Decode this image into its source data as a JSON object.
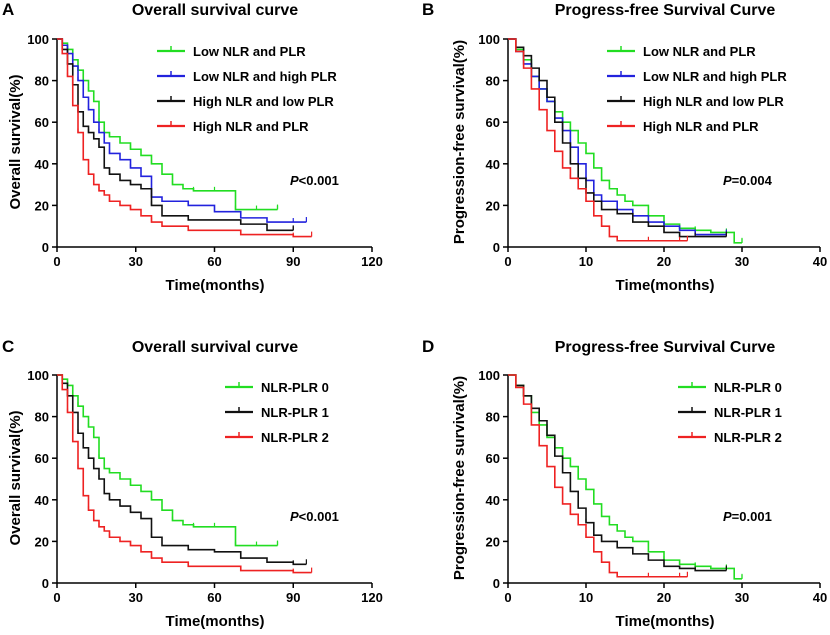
{
  "chart_data": [
    {
      "type": "line",
      "panel_label": "A",
      "title": "Overall survival curve",
      "xlabel": "Time(months)",
      "ylabel": "Overall survival(%)",
      "xlim": [
        0,
        120
      ],
      "ylim": [
        0,
        100
      ],
      "xticks": [
        "0",
        "30",
        "60",
        "90",
        "120"
      ],
      "yticks": [
        "0",
        "20",
        "40",
        "60",
        "80",
        "100"
      ],
      "pvalue": {
        "italic": "P",
        "rest": "<0.001"
      },
      "series": [
        {
          "name": "Low NLR and PLR",
          "color": "#22dd22",
          "x": [
            0,
            2,
            4,
            6,
            8,
            10,
            12,
            14,
            16,
            18,
            20,
            24,
            28,
            32,
            36,
            40,
            44,
            48,
            52,
            56,
            60,
            64,
            68,
            72,
            76,
            80,
            84
          ],
          "y": [
            100,
            98,
            95,
            90,
            85,
            80,
            75,
            70,
            60,
            55,
            53,
            50,
            47,
            44,
            40,
            35,
            30,
            28,
            27,
            27,
            27,
            27,
            18,
            18,
            18,
            18,
            18
          ]
        },
        {
          "name": "Low NLR and high PLR",
          "color": "#2222dd",
          "x": [
            0,
            2,
            4,
            6,
            8,
            10,
            12,
            14,
            16,
            18,
            20,
            24,
            28,
            32,
            36,
            40,
            50,
            60,
            70,
            80,
            90,
            95
          ],
          "y": [
            100,
            97,
            93,
            87,
            80,
            72,
            66,
            60,
            55,
            50,
            45,
            42,
            38,
            34,
            24,
            22,
            20,
            17,
            14,
            12,
            12,
            12
          ]
        },
        {
          "name": "High NLR and low PLR",
          "color": "#111111",
          "x": [
            0,
            2,
            4,
            6,
            8,
            10,
            12,
            14,
            16,
            18,
            20,
            24,
            28,
            32,
            36,
            40,
            50,
            60,
            70,
            80,
            90
          ],
          "y": [
            100,
            95,
            88,
            78,
            65,
            58,
            55,
            52,
            48,
            38,
            35,
            32,
            30,
            28,
            20,
            15,
            13,
            13,
            11,
            8,
            8
          ]
        },
        {
          "name": "High NLR and PLR",
          "color": "#ee2222",
          "x": [
            0,
            2,
            4,
            6,
            8,
            10,
            12,
            14,
            16,
            18,
            20,
            24,
            28,
            32,
            36,
            40,
            50,
            60,
            70,
            80,
            90,
            97
          ],
          "y": [
            100,
            93,
            82,
            68,
            55,
            42,
            35,
            30,
            27,
            25,
            22,
            20,
            18,
            15,
            12,
            10,
            8,
            8,
            6,
            6,
            5,
            5
          ]
        }
      ]
    },
    {
      "type": "line",
      "panel_label": "B",
      "title": "Progress-free Survival Curve",
      "xlabel": "Time(months)",
      "ylabel": "Progression-free survival(%)",
      "xlim": [
        0,
        40
      ],
      "ylim": [
        0,
        100
      ],
      "xticks": [
        "0",
        "10",
        "20",
        "30",
        "40"
      ],
      "yticks": [
        "0",
        "20",
        "40",
        "60",
        "80",
        "100"
      ],
      "pvalue": {
        "italic": "P",
        "rest": "=0.004"
      },
      "series": [
        {
          "name": "Low NLR and PLR",
          "color": "#22dd22",
          "x": [
            0,
            1,
            2,
            3,
            4,
            5,
            6,
            7,
            8,
            9,
            10,
            11,
            12,
            13,
            14,
            15,
            16,
            18,
            20,
            22,
            24,
            26,
            28,
            29,
            30
          ],
          "y": [
            100,
            95,
            90,
            82,
            76,
            70,
            65,
            60,
            56,
            50,
            45,
            38,
            32,
            28,
            25,
            22,
            20,
            15,
            11,
            9,
            8,
            7,
            7,
            2,
            2
          ]
        },
        {
          "name": "Low NLR and high PLR",
          "color": "#2222dd",
          "x": [
            0,
            1,
            2,
            3,
            4,
            5,
            6,
            7,
            8,
            9,
            10,
            11,
            12,
            14,
            16,
            18,
            20,
            22,
            24,
            26,
            28
          ],
          "y": [
            100,
            94,
            88,
            82,
            76,
            70,
            62,
            56,
            48,
            40,
            32,
            25,
            22,
            18,
            15,
            12,
            10,
            8,
            6,
            6,
            6
          ]
        },
        {
          "name": "High NLR and low PLR",
          "color": "#111111",
          "x": [
            0,
            1,
            2,
            3,
            4,
            5,
            6,
            7,
            8,
            9,
            10,
            11,
            12,
            14,
            16,
            18,
            20,
            22,
            24,
            26,
            28
          ],
          "y": [
            100,
            96,
            92,
            86,
            80,
            72,
            60,
            50,
            40,
            33,
            26,
            22,
            18,
            16,
            12,
            10,
            7,
            5,
            5,
            5,
            5
          ]
        },
        {
          "name": "High NLR and PLR",
          "color": "#ee2222",
          "x": [
            0,
            1,
            2,
            3,
            4,
            5,
            6,
            7,
            8,
            9,
            10,
            11,
            12,
            13,
            14,
            16,
            18,
            20,
            22,
            23
          ],
          "y": [
            100,
            94,
            86,
            76,
            66,
            56,
            46,
            38,
            33,
            28,
            22,
            15,
            10,
            5,
            3,
            3,
            3,
            3,
            3,
            3
          ]
        }
      ]
    },
    {
      "type": "line",
      "panel_label": "C",
      "title": "Overall survival curve",
      "xlabel": "Time(months)",
      "ylabel": "Overall survival(%)",
      "xlim": [
        0,
        120
      ],
      "ylim": [
        0,
        100
      ],
      "xticks": [
        "0",
        "30",
        "60",
        "90",
        "120"
      ],
      "yticks": [
        "0",
        "20",
        "40",
        "60",
        "80",
        "100"
      ],
      "pvalue": {
        "italic": "P",
        "rest": "<0.001"
      },
      "series": [
        {
          "name": "NLR-PLR 0",
          "color": "#22dd22",
          "x": [
            0,
            2,
            4,
            6,
            8,
            10,
            12,
            14,
            16,
            18,
            20,
            24,
            28,
            32,
            36,
            40,
            44,
            48,
            52,
            56,
            60,
            64,
            68,
            72,
            76,
            80,
            84
          ],
          "y": [
            100,
            98,
            95,
            90,
            85,
            80,
            75,
            70,
            60,
            55,
            53,
            50,
            47,
            44,
            40,
            35,
            30,
            28,
            27,
            27,
            27,
            27,
            18,
            18,
            18,
            18,
            18
          ]
        },
        {
          "name": "NLR-PLR 1",
          "color": "#111111",
          "x": [
            0,
            2,
            4,
            6,
            8,
            10,
            12,
            14,
            16,
            18,
            20,
            24,
            28,
            32,
            36,
            40,
            50,
            60,
            70,
            80,
            90,
            95
          ],
          "y": [
            100,
            96,
            90,
            82,
            72,
            65,
            60,
            55,
            50,
            43,
            40,
            37,
            34,
            31,
            22,
            18,
            16,
            15,
            12,
            10,
            9,
            9
          ]
        },
        {
          "name": "NLR-PLR 2",
          "color": "#ee2222",
          "x": [
            0,
            2,
            4,
            6,
            8,
            10,
            12,
            14,
            16,
            18,
            20,
            24,
            28,
            32,
            36,
            40,
            50,
            60,
            70,
            80,
            90,
            97
          ],
          "y": [
            100,
            93,
            82,
            68,
            55,
            42,
            35,
            30,
            27,
            25,
            22,
            20,
            18,
            15,
            12,
            10,
            8,
            8,
            6,
            6,
            5,
            5
          ]
        }
      ]
    },
    {
      "type": "line",
      "panel_label": "D",
      "title": "Progress-free Survival Curve",
      "xlabel": "Time(months)",
      "ylabel": "Progression-free survival(%)",
      "xlim": [
        0,
        40
      ],
      "ylim": [
        0,
        100
      ],
      "xticks": [
        "0",
        "10",
        "20",
        "30",
        "40"
      ],
      "yticks": [
        "0",
        "20",
        "40",
        "60",
        "80",
        "100"
      ],
      "pvalue": {
        "italic": "P",
        "rest": "=0.001"
      },
      "series": [
        {
          "name": "NLR-PLR 0",
          "color": "#22dd22",
          "x": [
            0,
            1,
            2,
            3,
            4,
            5,
            6,
            7,
            8,
            9,
            10,
            11,
            12,
            13,
            14,
            15,
            16,
            18,
            20,
            22,
            24,
            26,
            28,
            29,
            30
          ],
          "y": [
            100,
            95,
            90,
            82,
            76,
            70,
            65,
            60,
            56,
            50,
            45,
            38,
            32,
            28,
            25,
            22,
            20,
            15,
            11,
            9,
            8,
            7,
            7,
            2,
            2
          ]
        },
        {
          "name": "NLR-PLR 1",
          "color": "#111111",
          "x": [
            0,
            1,
            2,
            3,
            4,
            5,
            6,
            7,
            8,
            9,
            10,
            11,
            12,
            14,
            16,
            18,
            20,
            22,
            24,
            26,
            28
          ],
          "y": [
            100,
            95,
            90,
            84,
            78,
            71,
            61,
            53,
            44,
            36,
            29,
            23,
            20,
            17,
            14,
            11,
            8,
            7,
            6,
            6,
            6
          ]
        },
        {
          "name": "NLR-PLR 2",
          "color": "#ee2222",
          "x": [
            0,
            1,
            2,
            3,
            4,
            5,
            6,
            7,
            8,
            9,
            10,
            11,
            12,
            13,
            14,
            16,
            18,
            20,
            22,
            23
          ],
          "y": [
            100,
            94,
            86,
            76,
            66,
            56,
            46,
            38,
            33,
            28,
            22,
            15,
            10,
            5,
            3,
            3,
            3,
            3,
            3,
            3
          ]
        }
      ]
    }
  ]
}
